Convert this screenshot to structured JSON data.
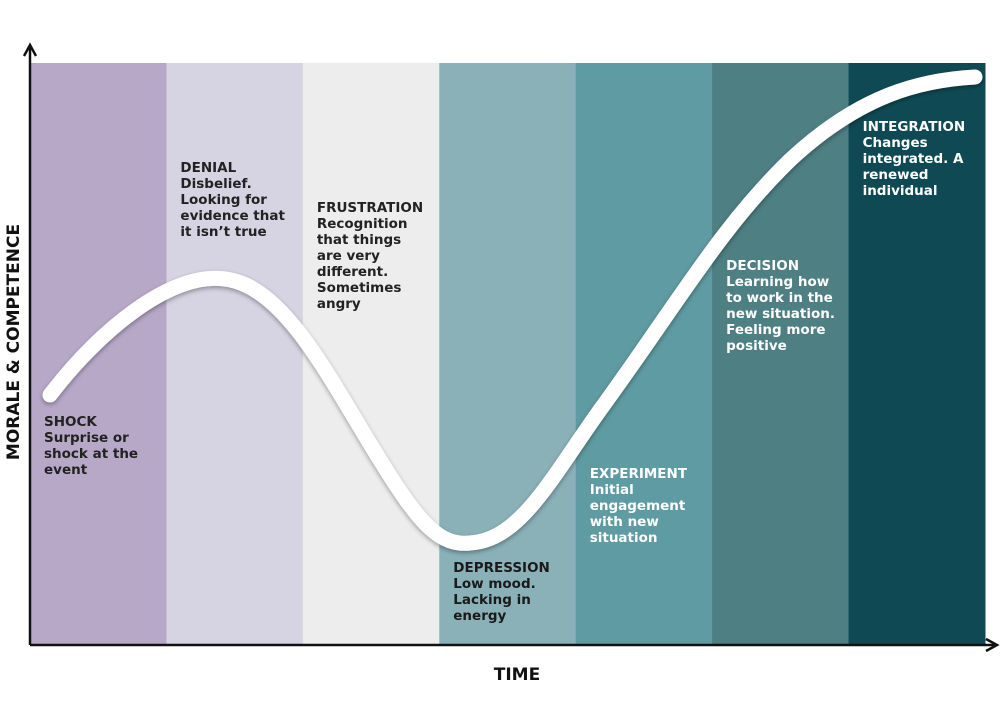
{
  "axes": {
    "y_label": "MORALE & COMPETENCE",
    "x_label": "TIME"
  },
  "stages": [
    {
      "title": "SHOCK",
      "lines": [
        "Surprise or",
        "shock at the",
        "event"
      ]
    },
    {
      "title": "DENIAL",
      "lines": [
        "Disbelief.",
        "Looking for",
        "evidence that",
        "it isn’t true"
      ]
    },
    {
      "title": "FRUSTRATION",
      "lines": [
        "Recognition",
        "that things",
        "are very",
        "different.",
        "Sometimes",
        "angry"
      ]
    },
    {
      "title": "DEPRESSION",
      "lines": [
        "Low mood.",
        "Lacking in",
        "energy"
      ]
    },
    {
      "title": "EXPERIMENT",
      "lines": [
        "Initial",
        "engagement",
        "with new",
        "situation"
      ]
    },
    {
      "title": "DECISION",
      "lines": [
        "Learning how",
        "to work in the",
        "new situation.",
        "Feeling more",
        "positive"
      ]
    },
    {
      "title": "INTEGRATION",
      "lines": [
        "Changes",
        "integrated. A",
        "renewed",
        "individual"
      ]
    }
  ]
}
